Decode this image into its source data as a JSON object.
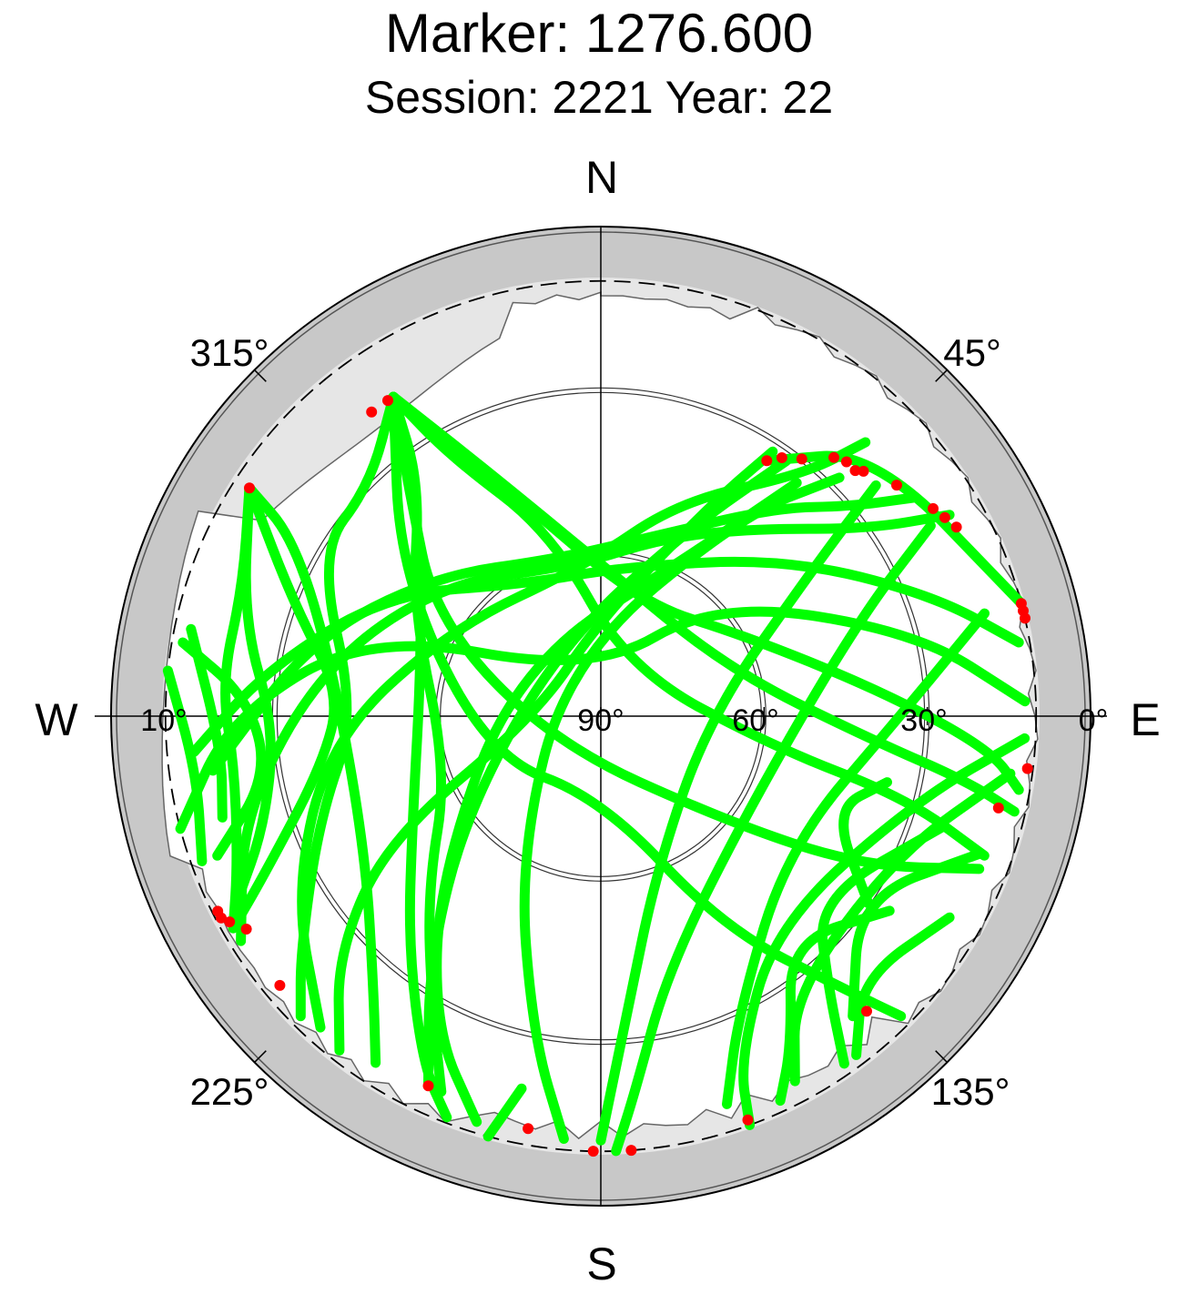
{
  "title": "Marker: 1276.600",
  "subtitle": "Session: 2221 Year: 22",
  "compass": {
    "north": "N",
    "south": "S",
    "west": "W",
    "east": "E"
  },
  "azimuth_labels": {
    "a315": "315°",
    "a45": "45°",
    "a225": "225°",
    "a135": "135°"
  },
  "elevation_labels": {
    "e10": "10°",
    "e90": "90°",
    "e60": "60°",
    "e30": "30°",
    "e0": "0°"
  },
  "colors": {
    "track": "#00ff00",
    "endpoint": "#ff0000",
    "mask_outer": "#c8c8c8",
    "mask_inner": "#e6e6e6"
  },
  "chart_data": {
    "type": "scatter",
    "projection": "polar skyplot (azimuth, elevation)",
    "title": "Marker: 1276.600",
    "subtitle": "Session: 2221 Year: 22",
    "elevation_ticks": [
      0,
      10,
      30,
      60,
      90
    ],
    "azimuth_ticks": [
      45,
      135,
      225,
      315
    ],
    "elevation_mask_deg": 10,
    "series": [
      {
        "color": "green",
        "tracks_az_el": [
          [
            [
              33,
              34
            ],
            [
              46,
              20
            ],
            [
              75,
              10
            ]
          ],
          [
            [
              44,
              20
            ],
            [
              40,
              32
            ],
            [
              20,
              48
            ],
            [
              355,
              62
            ],
            [
              300,
              58
            ],
            [
              265,
              40
            ],
            [
              240,
              25
            ],
            [
              222,
              13
            ]
          ],
          [
            [
              55,
              20
            ],
            [
              50,
              30
            ],
            [
              40,
              40
            ],
            [
              15,
              56
            ],
            [
              345,
              60
            ],
            [
              310,
              50
            ],
            [
              285,
              35
            ],
            [
              262,
              18
            ]
          ],
          [
            [
              60,
              16
            ],
            [
              55,
              30
            ],
            [
              40,
              45
            ],
            [
              20,
              55
            ],
            [
              350,
              62
            ],
            [
              310,
              52
            ],
            [
              280,
              38
            ],
            [
              255,
              22
            ],
            [
              238,
              12
            ]
          ],
          [
            [
              80,
              12
            ],
            [
              70,
              25
            ],
            [
              50,
              45
            ],
            [
              10,
              62
            ],
            [
              330,
              62
            ],
            [
              300,
              45
            ],
            [
              278,
              28
            ],
            [
              265,
              15
            ]
          ],
          [
            [
              88,
              12
            ],
            [
              75,
              30
            ],
            [
              45,
              60
            ],
            [
              350,
              82
            ],
            [
              290,
              45
            ],
            [
              270,
              22
            ],
            [
              255,
              10
            ]
          ],
          [
            [
              33,
              32
            ],
            [
              28,
              45
            ],
            [
              0,
              72
            ],
            [
              270,
              78
            ],
            [
              240,
              45
            ],
            [
              228,
              25
            ],
            [
              218,
              12
            ]
          ],
          [
            [
              36,
              32
            ],
            [
              25,
              52
            ],
            [
              330,
              75
            ],
            [
              235,
              60
            ],
            [
              215,
              35
            ],
            [
              205,
              15
            ]
          ],
          [
            [
              40,
              34
            ],
            [
              30,
              55
            ],
            [
              300,
              72
            ],
            [
              225,
              48
            ],
            [
              208,
              25
            ],
            [
              197,
              12
            ]
          ],
          [
            [
              45,
              28
            ],
            [
              35,
              45
            ],
            [
              330,
              78
            ],
            [
              210,
              60
            ],
            [
              192,
              30
            ],
            [
              185,
              12
            ]
          ],
          [
            [
              50,
              24
            ],
            [
              55,
              42
            ],
            [
              90,
              70
            ],
            [
              160,
              60
            ],
            [
              175,
              35
            ],
            [
              180,
              12
            ]
          ],
          [
            [
              60,
              20
            ],
            [
              70,
              40
            ],
            [
              120,
              58
            ],
            [
              165,
              42
            ],
            [
              175,
              20
            ],
            [
              178,
              10
            ]
          ],
          [
            [
              75,
              17
            ],
            [
              90,
              35
            ],
            [
              125,
              48
            ],
            [
              155,
              30
            ],
            [
              162,
              15
            ]
          ],
          [
            [
              93,
              12
            ],
            [
              105,
              30
            ],
            [
              140,
              40
            ],
            [
              158,
              22
            ],
            [
              160,
              10
            ]
          ],
          [
            [
              98,
              14
            ],
            [
              115,
              30
            ],
            [
              145,
              28
            ],
            [
              152,
              14
            ]
          ],
          [
            [
              110,
              16
            ],
            [
              125,
              32
            ],
            [
              140,
              18
            ]
          ],
          [
            [
              108,
              24
            ],
            [
              130,
              38
            ],
            [
              140,
              25
            ],
            [
              145,
              12
            ]
          ],
          [
            [
              124,
              26
            ],
            [
              140,
              36
            ],
            [
              150,
              20
            ],
            [
              155,
              12
            ]
          ],
          [
            [
              120,
              16
            ],
            [
              135,
              22
            ],
            [
              143,
              12
            ]
          ],
          [
            [
              103,
              36
            ],
            [
              112,
              44
            ],
            [
              125,
              30
            ]
          ],
          [
            [
              195,
              10
            ],
            [
              192,
              20
            ]
          ],
          [
            [
              327,
              20
            ],
            [
              322,
              36
            ],
            [
              300,
              50
            ],
            [
              250,
              60
            ],
            [
              225,
              45
            ],
            [
              210,
              28
            ],
            [
              203,
              15
            ]
          ],
          [
            [
              327,
              20
            ],
            [
              318,
              40
            ],
            [
              290,
              55
            ],
            [
              240,
              50
            ],
            [
              220,
              35
            ],
            [
              207,
              18
            ],
            [
              201,
              11
            ]
          ],
          [
            [
              327,
              20
            ],
            [
              315,
              30
            ],
            [
              300,
              30
            ],
            [
              270,
              45
            ],
            [
              250,
              35
            ],
            [
              232,
              20
            ],
            [
              225,
              12
            ]
          ],
          [
            [
              327,
              20
            ],
            [
              305,
              45
            ],
            [
              250,
              68
            ],
            [
              180,
              75
            ],
            [
              150,
              45
            ],
            [
              138,
              22
            ],
            [
              135,
              12
            ]
          ],
          [
            [
              327,
              20
            ],
            [
              320,
              35
            ],
            [
              300,
              55
            ],
            [
              240,
              80
            ],
            [
              130,
              60
            ],
            [
              120,
              35
            ],
            [
              112,
              15
            ]
          ],
          [
            [
              327,
              20
            ],
            [
              330,
              35
            ],
            [
              345,
              55
            ],
            [
              30,
              80
            ],
            [
              100,
              58
            ],
            [
              105,
              32
            ],
            [
              110,
              15
            ]
          ],
          [
            [
              327,
              20
            ],
            [
              335,
              40
            ],
            [
              0,
              62
            ],
            [
              70,
              65
            ],
            [
              95,
              40
            ],
            [
              100,
              22
            ],
            [
              103,
              12
            ]
          ],
          [
            [
              327,
              20
            ],
            [
              340,
              48
            ],
            [
              20,
              68
            ],
            [
              60,
              60
            ],
            [
              85,
              38
            ],
            [
              95,
              18
            ],
            [
              100,
              12
            ]
          ],
          [
            [
              303,
              13
            ],
            [
              290,
              30
            ],
            [
              275,
              42
            ],
            [
              260,
              38
            ],
            [
              245,
              22
            ],
            [
              240,
              12
            ]
          ],
          [
            [
              303,
              13
            ],
            [
              285,
              22
            ],
            [
              268,
              30
            ],
            [
              252,
              25
            ],
            [
              243,
              15
            ]
          ],
          [
            [
              303,
              13
            ],
            [
              290,
              20
            ],
            [
              275,
              20
            ],
            [
              262,
              22
            ],
            [
              248,
              18
            ],
            [
              240,
              12
            ]
          ],
          [
            [
              303,
              13
            ],
            [
              300,
              25
            ],
            [
              280,
              40
            ],
            [
              240,
              40
            ],
            [
              220,
              25
            ],
            [
              213,
              14
            ]
          ],
          [
            [
              280,
              12
            ],
            [
              273,
              25
            ],
            [
              260,
              28
            ],
            [
              250,
              15
            ]
          ],
          [
            [
              282,
              13
            ],
            [
              265,
              20
            ],
            [
              255,
              18
            ]
          ],
          [
            [
              276,
              10
            ],
            [
              262,
              15
            ],
            [
              250,
              12
            ]
          ]
        ]
      },
      {
        "color": "red",
        "endpoints_az_el": [
          [
            33,
            34
          ],
          [
            35,
            32
          ],
          [
            38,
            30
          ],
          [
            42,
            26
          ],
          [
            44,
            25
          ],
          [
            46,
            25
          ],
          [
            47,
            24
          ],
          [
            52,
            21
          ],
          [
            58,
            18
          ],
          [
            60,
            17
          ],
          [
            62,
            16
          ],
          [
            75,
            10
          ],
          [
            76,
            10
          ],
          [
            77,
            10
          ],
          [
            97,
            11
          ],
          [
            103,
            15
          ],
          [
            138,
            17
          ],
          [
            160,
            11
          ],
          [
            176,
            10
          ],
          [
            181,
            10
          ],
          [
            190,
            13
          ],
          [
            205,
            15
          ],
          [
            230,
            13
          ],
          [
            239,
            14
          ],
          [
            241,
            12
          ],
          [
            242,
            11
          ],
          [
            243,
            11
          ],
          [
            303,
            13
          ],
          [
            323,
            20
          ],
          [
            326,
            20
          ]
        ]
      }
    ]
  }
}
